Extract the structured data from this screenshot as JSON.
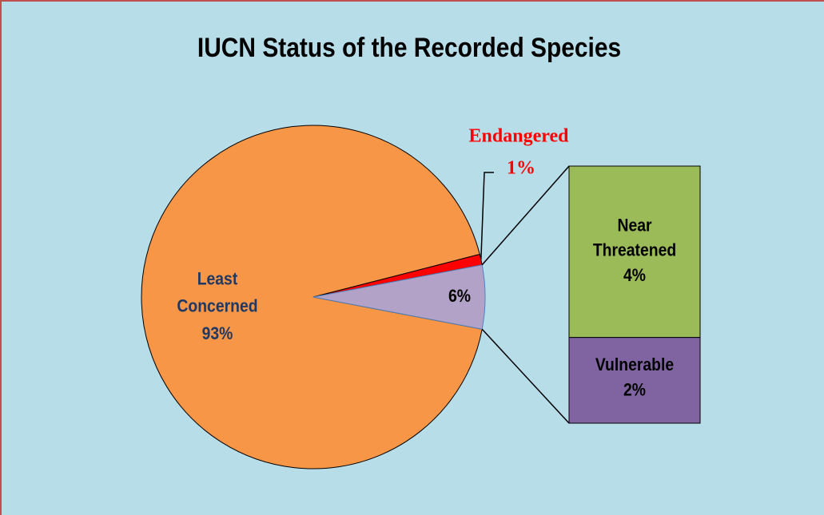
{
  "chart_data": {
    "type": "bar_of_pie",
    "title": "IUCN Status of the Recorded Species",
    "categories": [
      "Least Concerned",
      "Endangered",
      null
    ],
    "values": [
      93,
      1,
      6
    ],
    "value_labels": [
      "93%",
      "1%",
      "6%"
    ],
    "colors": [
      "#f79646",
      "#ff0000",
      "#b3a2c7"
    ],
    "breakdown": {
      "categories": [
        "Near Threatened",
        "Vulnerable"
      ],
      "values": [
        4,
        2
      ],
      "value_labels": [
        "4%",
        "2%"
      ],
      "colors": [
        "#9bbb59",
        "#8064a2"
      ]
    }
  }
}
